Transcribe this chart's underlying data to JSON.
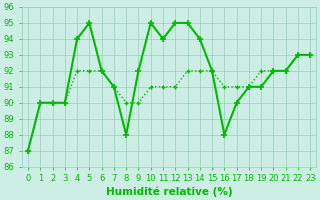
{
  "line1_x": [
    0,
    1,
    2,
    3,
    4,
    5,
    6,
    7,
    8,
    9,
    10,
    11,
    12,
    13,
    14,
    15,
    16,
    17,
    18,
    19,
    20,
    21,
    22,
    23
  ],
  "line1_y": [
    87,
    90,
    90,
    90,
    94,
    95,
    92,
    91,
    88,
    92,
    95,
    94,
    95,
    95,
    94,
    92,
    88,
    90,
    91,
    91,
    92,
    92,
    93,
    93
  ],
  "line2_x": [
    0,
    1,
    2,
    3,
    4,
    5,
    6,
    7,
    8,
    9,
    10,
    11,
    12,
    13,
    14,
    15,
    16,
    17,
    18,
    19,
    20,
    21,
    22,
    23
  ],
  "line2_y": [
    87,
    90,
    90,
    90,
    92,
    92,
    92,
    91,
    90,
    90,
    91,
    91,
    91,
    92,
    92,
    92,
    91,
    91,
    91,
    92,
    92,
    92,
    93,
    93
  ],
  "xlabel": "Humidité relative (%)",
  "ylim": [
    86,
    96
  ],
  "xlim": [
    -0.5,
    23.5
  ],
  "yticks": [
    86,
    87,
    88,
    89,
    90,
    91,
    92,
    93,
    94,
    95,
    96
  ],
  "xticks": [
    0,
    1,
    2,
    3,
    4,
    5,
    6,
    7,
    8,
    9,
    10,
    11,
    12,
    13,
    14,
    15,
    16,
    17,
    18,
    19,
    20,
    21,
    22,
    23
  ],
  "line_color": "#00bb00",
  "bg_color": "#cceee4",
  "grid_color": "#99ccbb",
  "marker1": "+",
  "marker2": "+",
  "marker_size1": 4,
  "marker_size2": 3,
  "linewidth1": 1.5,
  "linewidth2": 1.0,
  "xlabel_fontsize": 7.5,
  "tick_fontsize": 6
}
